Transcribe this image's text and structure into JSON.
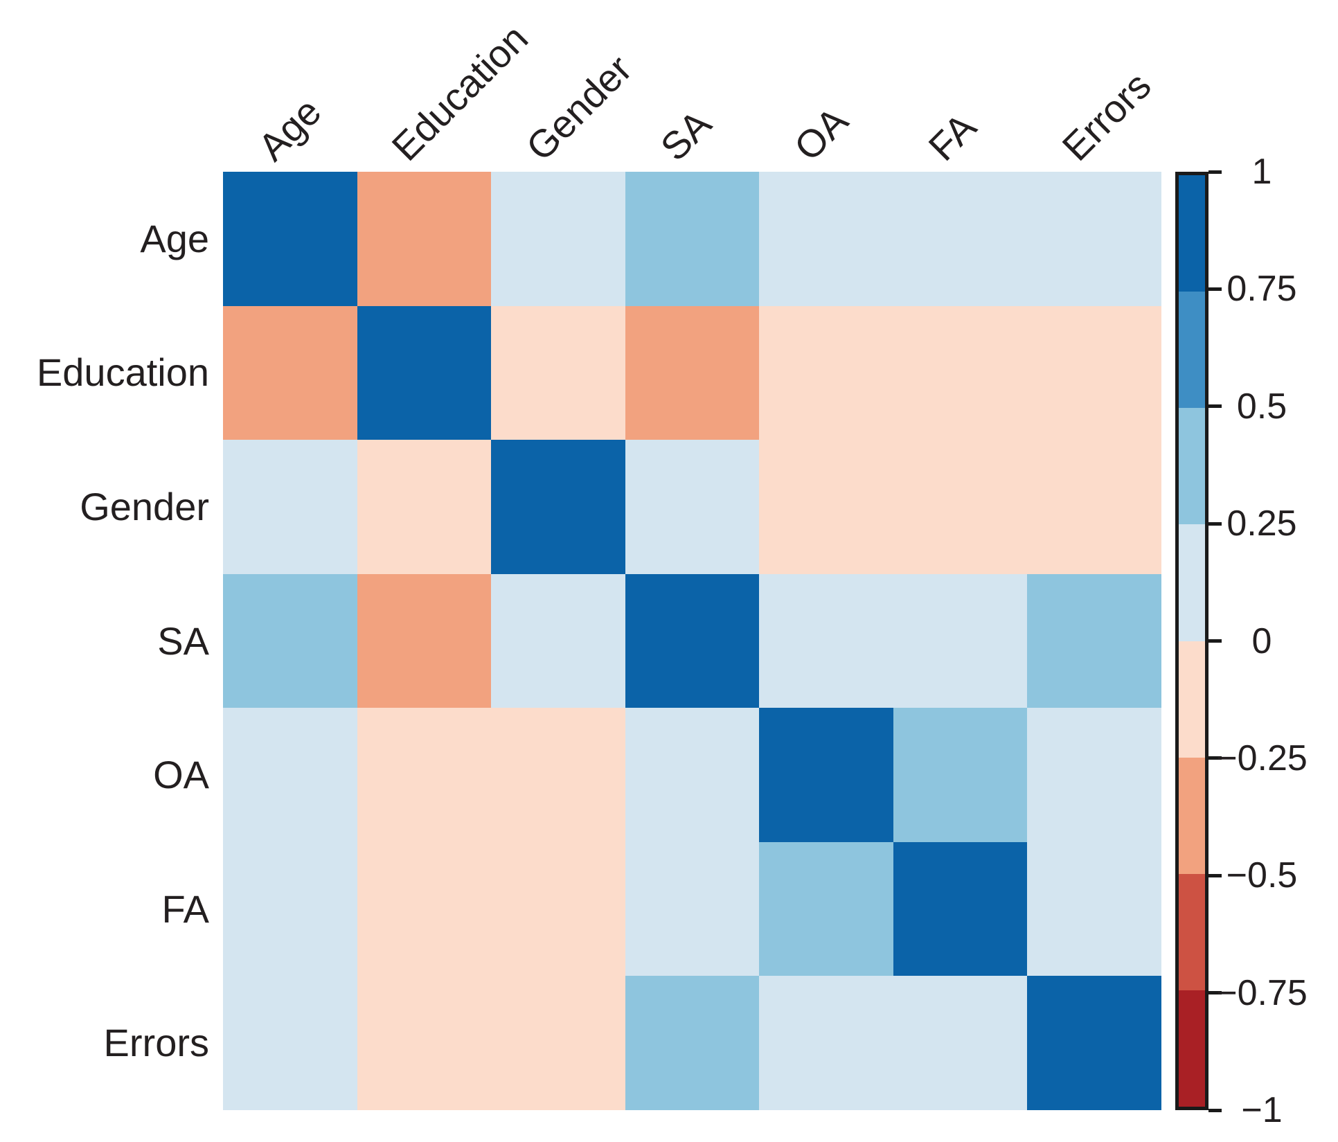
{
  "chart_data": {
    "type": "heatmap",
    "title": "",
    "variables": [
      "Age",
      "Education",
      "Gender",
      "SA",
      "OA",
      "FA",
      "Errors"
    ],
    "matrix": {
      "rows": [
        "Age",
        "Education",
        "Gender",
        "SA",
        "OA",
        "FA",
        "Errors"
      ],
      "cols": [
        "Age",
        "Education",
        "Gender",
        "SA",
        "OA",
        "FA",
        "Errors"
      ],
      "values": [
        [
          1.0,
          -0.4,
          0.1,
          0.4,
          0.1,
          0.1,
          0.1
        ],
        [
          -0.4,
          1.0,
          -0.1,
          -0.4,
          -0.1,
          -0.1,
          -0.1
        ],
        [
          0.1,
          -0.1,
          1.0,
          0.1,
          -0.1,
          -0.1,
          -0.1
        ],
        [
          0.4,
          -0.4,
          0.1,
          1.0,
          0.1,
          0.1,
          0.4
        ],
        [
          0.1,
          -0.1,
          -0.1,
          0.1,
          1.0,
          0.4,
          0.1
        ],
        [
          0.1,
          -0.1,
          -0.1,
          0.1,
          0.4,
          1.0,
          0.1
        ],
        [
          0.1,
          -0.1,
          -0.1,
          0.4,
          0.1,
          0.1,
          1.0
        ]
      ]
    },
    "value_range": [
      -1,
      1
    ],
    "grid": false,
    "colorbar": {
      "orientation": "vertical",
      "position": "right",
      "ticks": [
        1,
        0.75,
        0.5,
        0.25,
        0,
        -0.25,
        -0.5,
        -0.75,
        -1
      ],
      "tick_labels": [
        "1",
        "0.75",
        "0.5",
        "0.25",
        "0",
        "−0.25",
        "−0.5",
        "−0.75",
        "−1"
      ]
    },
    "palette_bins": [
      {
        "min": 0.75,
        "max": 1.0,
        "color": "#0b63a8"
      },
      {
        "min": 0.5,
        "max": 0.75,
        "color": "#3e8ec4"
      },
      {
        "min": 0.25,
        "max": 0.5,
        "color": "#8ec5de"
      },
      {
        "min": 0.0,
        "max": 0.25,
        "color": "#d4e5f0"
      },
      {
        "min": -0.25,
        "max": 0.0,
        "color": "#fcdccb"
      },
      {
        "min": -0.5,
        "max": -0.25,
        "color": "#f2a27f"
      },
      {
        "min": -0.75,
        "max": -0.5,
        "color": "#cd5243"
      },
      {
        "min": -1.0,
        "max": -0.75,
        "color": "#a92025"
      }
    ],
    "text_color": "#231f20",
    "background": "#ffffff"
  }
}
